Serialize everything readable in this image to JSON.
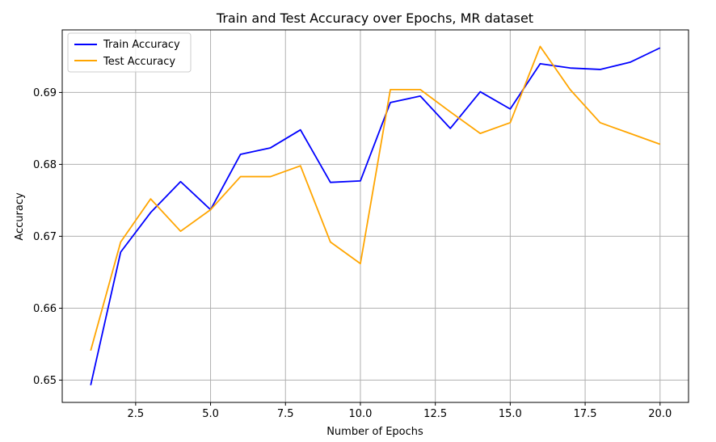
{
  "chart_data": {
    "type": "line",
    "title": "Train and Test Accuracy over Epochs, MR dataset",
    "xlabel": "Number of Epochs",
    "ylabel": "Accuracy",
    "xlim": [
      0.05,
      20.95
    ],
    "ylim": [
      0.6469,
      0.6987
    ],
    "x_ticks": [
      2.5,
      5.0,
      7.5,
      10.0,
      12.5,
      15.0,
      17.5,
      20.0
    ],
    "x_tick_labels": [
      "2.5",
      "5.0",
      "7.5",
      "10.0",
      "12.5",
      "15.0",
      "17.5",
      "20.0"
    ],
    "y_ticks": [
      0.65,
      0.66,
      0.67,
      0.68,
      0.69
    ],
    "y_tick_labels": [
      "0.65",
      "0.66",
      "0.67",
      "0.68",
      "0.69"
    ],
    "grid": true,
    "legend_position": "top-left",
    "x": [
      1,
      2,
      3,
      4,
      5,
      6,
      7,
      8,
      9,
      10,
      11,
      12,
      13,
      14,
      15,
      16,
      17,
      18,
      19,
      20
    ],
    "series": [
      {
        "name": "Train Accuracy",
        "color": "#0000ff",
        "values": [
          0.6493,
          0.6678,
          0.6733,
          0.6776,
          0.6737,
          0.6814,
          0.6823,
          0.6848,
          0.6775,
          0.6777,
          0.6886,
          0.6895,
          0.685,
          0.6901,
          0.6877,
          0.694,
          0.6934,
          0.6932,
          0.6942,
          0.6962
        ]
      },
      {
        "name": "Test Accuracy",
        "color": "#ffa500",
        "values": [
          0.6541,
          0.6692,
          0.6752,
          0.6707,
          0.6737,
          0.6783,
          0.6783,
          0.6798,
          0.6692,
          0.6662,
          0.6904,
          0.6904,
          0.6873,
          0.6843,
          0.6858,
          0.6964,
          0.6904,
          0.6858,
          0.6843,
          0.6828
        ]
      }
    ]
  }
}
